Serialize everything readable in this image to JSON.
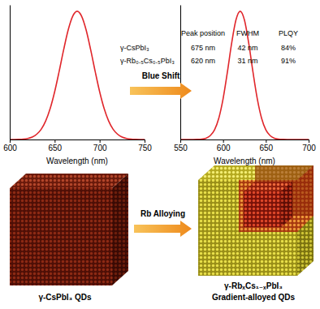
{
  "chart_data": [
    {
      "type": "line",
      "xlabel": "Wavelength (nm)",
      "color": "#e0262b",
      "tick_labels": "x",
      "xlim": [
        600,
        750
      ],
      "xticks": [
        600,
        650,
        700,
        750
      ],
      "ylim": [
        0,
        1.05
      ],
      "x": [
        600,
        605,
        610,
        615,
        620,
        625,
        630,
        635,
        640,
        645,
        650,
        655,
        660,
        665,
        670,
        675,
        680,
        685,
        690,
        695,
        700,
        705,
        710,
        715,
        720,
        725,
        730,
        735,
        740,
        745,
        750
      ],
      "values": [
        0,
        0,
        0.001,
        0.003,
        0.008,
        0.019,
        0.041,
        0.08,
        0.145,
        0.242,
        0.373,
        0.532,
        0.701,
        0.854,
        0.961,
        1,
        0.961,
        0.854,
        0.701,
        0.532,
        0.373,
        0.242,
        0.145,
        0.08,
        0.041,
        0.019,
        0.008,
        0.003,
        0.001,
        0,
        0
      ]
    },
    {
      "type": "line",
      "xlabel": "Wavelength (nm)",
      "color": "#e0262b",
      "tick_labels": "x",
      "xlim": [
        550,
        700
      ],
      "xticks": [
        550,
        600,
        650,
        700
      ],
      "ylim": [
        0,
        1.05
      ],
      "x": [
        550,
        555,
        560,
        565,
        570,
        575,
        580,
        585,
        590,
        595,
        600,
        605,
        610,
        615,
        620,
        625,
        630,
        635,
        640,
        645,
        650,
        655,
        660,
        665,
        670,
        675,
        680,
        685,
        690,
        695,
        700
      ],
      "values": [
        0,
        0,
        0,
        0,
        0.001,
        0.003,
        0.01,
        0.03,
        0.075,
        0.166,
        0.317,
        0.524,
        0.75,
        0.931,
        1,
        0.931,
        0.75,
        0.524,
        0.317,
        0.166,
        0.075,
        0.03,
        0.01,
        0.003,
        0.001,
        0,
        0,
        0,
        0,
        0,
        0
      ]
    }
  ],
  "table": {
    "columns": [
      "Peak position",
      "FWHM",
      "PLQY"
    ],
    "rows": [
      {
        "label": "γ-CsPbI₃",
        "cells": [
          "675 nm",
          "42 nm",
          "84%"
        ]
      },
      {
        "label": "γ-Rb₀.₅Cs₀.₅PbI₃",
        "cells": [
          "620 nm",
          "31 nm",
          "91%"
        ]
      }
    ]
  },
  "arrows": [
    "Blue Shift",
    "Rb Alloying"
  ],
  "cubes": [
    {
      "label": [
        "γ-CsPbI₃ QDs"
      ]
    },
    {
      "label": [
        "γ-RbₓCs₁₋ₓPbI₃",
        "Gradient-alloyed QDs"
      ]
    }
  ]
}
